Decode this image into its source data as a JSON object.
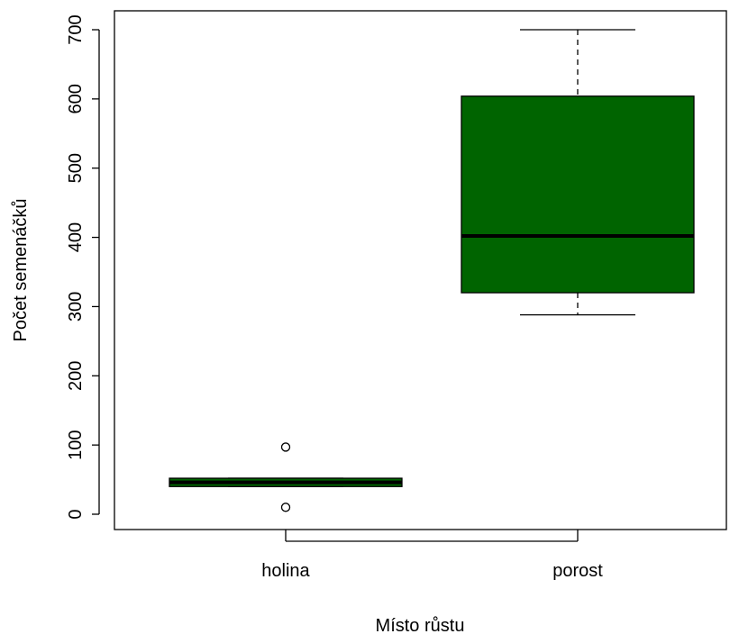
{
  "chart_data": {
    "type": "boxplot",
    "xlabel": "Místo růstu",
    "ylabel": "Počet semenáčků",
    "ylim": [
      -30,
      720
    ],
    "yticks": [
      0,
      100,
      200,
      300,
      400,
      500,
      600,
      700
    ],
    "categories": [
      "holina",
      "porost"
    ],
    "box_color": "#006400",
    "grid": false,
    "boxes": [
      {
        "label": "holina",
        "whisker_low": 40,
        "q1": 40,
        "median": 46,
        "q3": 52,
        "whisker_high": 52,
        "outliers": [
          97,
          10
        ]
      },
      {
        "label": "porost",
        "whisker_low": 288,
        "q1": 320,
        "median": 402,
        "q3": 604,
        "whisker_high": 700,
        "outliers": []
      }
    ]
  }
}
